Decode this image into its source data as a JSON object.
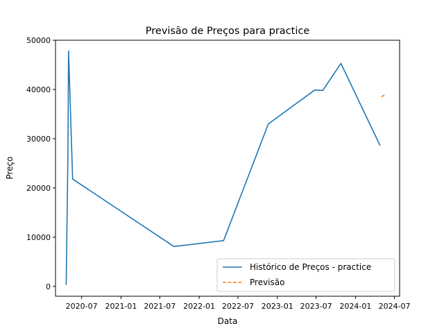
{
  "chart_data": {
    "type": "line",
    "title": "Previsão de Preços para practice",
    "xlabel": "Data",
    "ylabel": "Preço",
    "xlim": [
      "2020-03-01",
      "2024-07-25"
    ],
    "ylim": [
      -2000,
      50000
    ],
    "x_ticks": [
      "2020-07-01",
      "2021-01-01",
      "2021-07-01",
      "2022-01-01",
      "2022-07-01",
      "2023-01-01",
      "2023-07-01",
      "2024-01-01",
      "2024-07-01"
    ],
    "x_tick_labels": [
      "2020-07",
      "2021-01",
      "2021-07",
      "2022-01",
      "2022-07",
      "2023-01",
      "2023-07",
      "2024-01",
      "2024-07"
    ],
    "y_ticks": [
      0,
      10000,
      20000,
      30000,
      40000,
      50000
    ],
    "y_tick_labels": [
      "0",
      "10000",
      "20000",
      "30000",
      "40000",
      "50000"
    ],
    "grid": false,
    "legend_position": "lower right",
    "series": [
      {
        "name": "Histórico de Preços - practice",
        "color": "#1f77b4",
        "style": "solid",
        "points": [
          {
            "x": "2020-04-20",
            "y": 300
          },
          {
            "x": "2020-04-28",
            "y": 26500
          },
          {
            "x": "2020-05-01",
            "y": 47800
          },
          {
            "x": "2020-05-20",
            "y": 21800
          },
          {
            "x": "2021-09-05",
            "y": 8100
          },
          {
            "x": "2022-04-25",
            "y": 9300
          },
          {
            "x": "2022-11-20",
            "y": 33000
          },
          {
            "x": "2023-06-25",
            "y": 39900
          },
          {
            "x": "2023-08-01",
            "y": 39800
          },
          {
            "x": "2023-10-25",
            "y": 45300
          },
          {
            "x": "2024-04-25",
            "y": 28600
          }
        ]
      },
      {
        "name": "Previsão",
        "color": "#ff7f0e",
        "style": "dashed",
        "points": [
          {
            "x": "2024-05-01",
            "y": 38500
          },
          {
            "x": "2024-05-20",
            "y": 39000
          }
        ]
      }
    ]
  }
}
